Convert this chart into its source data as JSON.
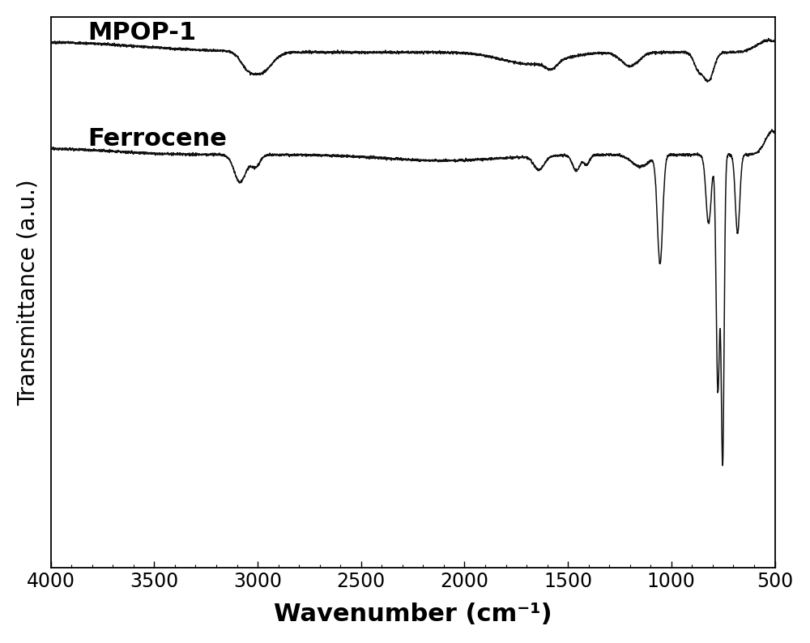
{
  "title": "",
  "xlabel": "Wavenumber (cm⁻¹)",
  "ylabel": "Transmittance (a.u.)",
  "xlim": [
    4000,
    500
  ],
  "ylim": [
    -1.8,
    1.0
  ],
  "background_color": "#ffffff",
  "line_color": "#111111",
  "label_MPOP": "MPOP-1",
  "label_Fc": "Ferrocene",
  "xticks": [
    4000,
    3500,
    3000,
    2500,
    2000,
    1500,
    1000,
    500
  ],
  "xlabel_fontsize": 22,
  "ylabel_fontsize": 20,
  "tick_fontsize": 17,
  "label_fontsize": 22,
  "mpop_baseline": 0.82,
  "fc_baseline": 0.3
}
